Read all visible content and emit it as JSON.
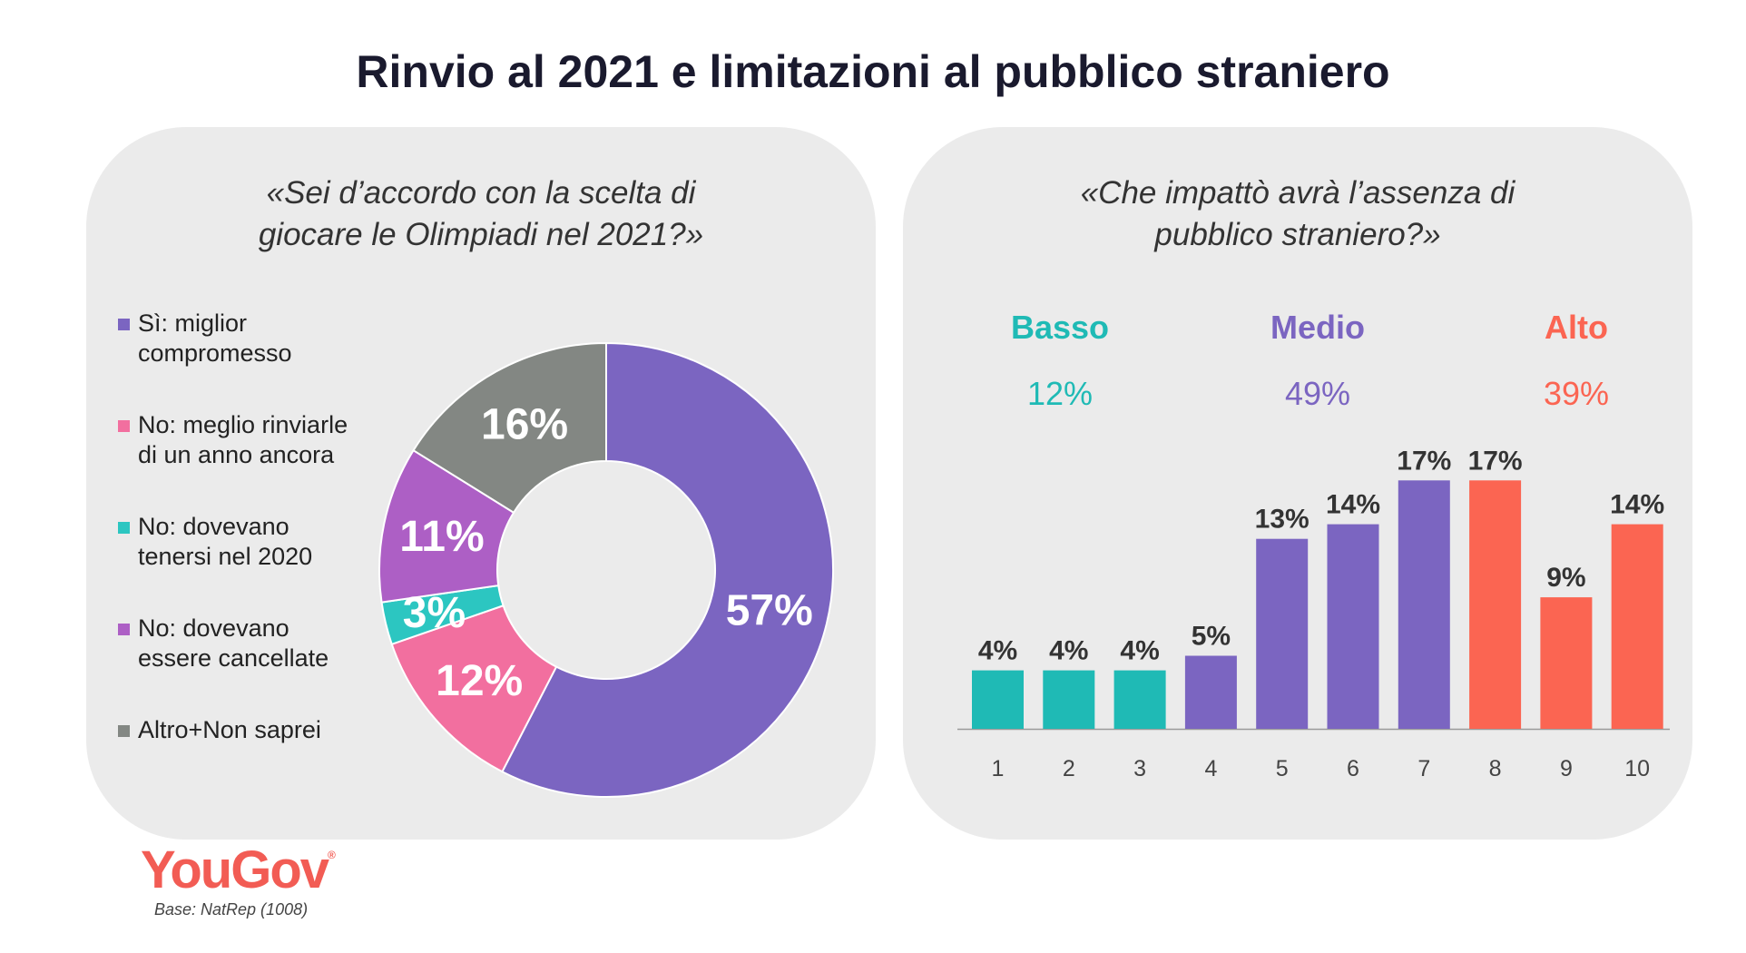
{
  "title": "Rinvio al 2021 e limitazioni al pubblico straniero",
  "colors": {
    "purple": "#7b65c1",
    "pink": "#f26f9f",
    "teal": "#2cc6c1",
    "violet": "#ad5fc5",
    "gray": "#838783",
    "basso": "#1fbab5",
    "medio": "#7b65c1",
    "alto": "#fb6552"
  },
  "left_panel": {
    "question_line1": "«Sei d’accordo con la scelta di",
    "question_line2": "giocare le Olimpiadi nel 2021?»",
    "legend": [
      {
        "line1": "Sì: miglior",
        "line2": "compromesso",
        "color": "#7b65c1"
      },
      {
        "line1": "No: meglio rinviarle",
        "line2": "di un anno ancora",
        "color": "#f26f9f"
      },
      {
        "line1": "No: dovevano",
        "line2": "tenersi nel 2020",
        "color": "#2cc6c1"
      },
      {
        "line1": "No: dovevano",
        "line2": "essere cancellate",
        "color": "#ad5fc5"
      },
      {
        "line1": "Altro+Non saprei",
        "line2": "",
        "color": "#838783"
      }
    ]
  },
  "right_panel": {
    "question_line1": "«Che impattò avrà l’assenza di",
    "question_line2": "pubblico straniero?»",
    "groups": [
      {
        "label": "Basso",
        "value": "12%"
      },
      {
        "label": "Medio",
        "value": "49%"
      },
      {
        "label": "Alto",
        "value": "39%"
      }
    ]
  },
  "chart_data": [
    {
      "type": "pie",
      "donut": true,
      "categories": [
        "Sì: miglior compromesso",
        "No: meglio rinviarle di un anno ancora",
        "No: dovevano tenersi nel 2020",
        "No: dovevano essere cancellate",
        "Altro+Non saprei"
      ],
      "values": [
        57,
        12,
        3,
        11,
        16
      ],
      "labels": [
        "57%",
        "12%",
        "3%",
        "11%",
        "16%"
      ],
      "colors": [
        "#7b65c1",
        "#f26f9f",
        "#2cc6c1",
        "#ad5fc5",
        "#838783"
      ]
    },
    {
      "type": "bar",
      "categories": [
        "1",
        "2",
        "3",
        "4",
        "5",
        "6",
        "7",
        "8",
        "9",
        "10"
      ],
      "values": [
        4,
        4,
        4,
        5,
        13,
        14,
        17,
        17,
        9,
        14
      ],
      "labels": [
        "4%",
        "4%",
        "4%",
        "5%",
        "13%",
        "14%",
        "17%",
        "17%",
        "9%",
        "14%"
      ],
      "groups": [
        "Basso",
        "Basso",
        "Basso",
        "Medio",
        "Medio",
        "Medio",
        "Medio",
        "Alto",
        "Alto",
        "Alto"
      ]
    }
  ],
  "footer": {
    "logo": "YouGov",
    "logo_mark": "®",
    "base": "Base: NatRep (1008)"
  }
}
